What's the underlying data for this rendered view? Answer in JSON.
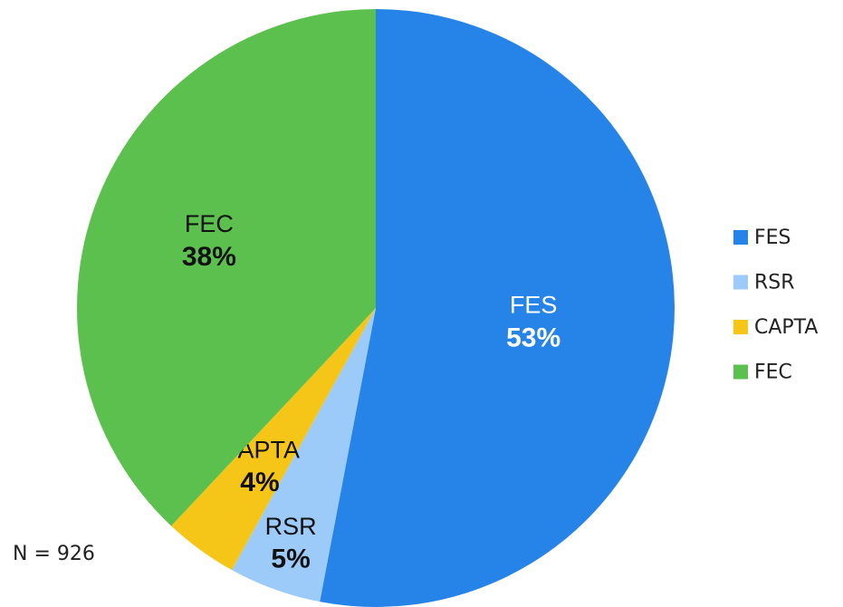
{
  "chart_data": {
    "type": "pie",
    "categories": [
      "FES",
      "RSR",
      "CAPTA",
      "FEC"
    ],
    "values": [
      53,
      5,
      4,
      38
    ],
    "value_labels": [
      "53%",
      "5%",
      "4%",
      "38%"
    ],
    "colors": [
      "#2684e8",
      "#9ccbfa",
      "#f5c518",
      "#5cc04e"
    ],
    "annotation": "N = 926",
    "legend": "right"
  }
}
